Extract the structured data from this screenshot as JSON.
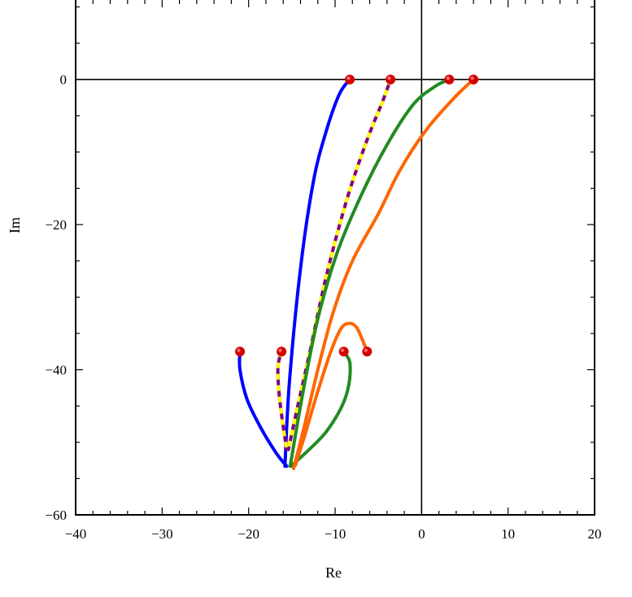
{
  "chart_data": {
    "type": "line",
    "title": "",
    "xlabel": "Re",
    "ylabel": "Im",
    "xlim": [
      -40,
      20
    ],
    "ylim": [
      -60,
      10
    ],
    "x_ticks": [
      -40,
      -30,
      -20,
      -10,
      0,
      10,
      20
    ],
    "y_ticks": [
      -60,
      -40,
      -20,
      0
    ],
    "x_tick_labels": [
      "−40",
      "−30",
      "−20",
      "−10",
      "0",
      "10",
      "20"
    ],
    "y_tick_labels": [
      "−60",
      "−40",
      "−20",
      "0"
    ],
    "grid": false,
    "reference_lines": {
      "x": 0,
      "y": 0
    },
    "series": [
      {
        "color": "#0000ff",
        "style": "solid",
        "points": [
          [
            -8.3,
            0
          ],
          [
            -9.5,
            -2
          ],
          [
            -11,
            -7
          ],
          [
            -12.5,
            -14
          ],
          [
            -14,
            -26
          ],
          [
            -15.3,
            -42
          ],
          [
            -15.8,
            -53.3
          ]
        ]
      },
      {
        "color": "#0000ff",
        "style": "solid",
        "points": [
          [
            -21,
            -37.5
          ],
          [
            -21,
            -40
          ],
          [
            -20.2,
            -44
          ],
          [
            -18.6,
            -48
          ],
          [
            -16.8,
            -51.5
          ],
          [
            -15.6,
            -53.3
          ]
        ]
      },
      {
        "color": "#800080",
        "dash_color": "#ffff00",
        "style": "dashed",
        "points": [
          [
            -3.6,
            0
          ],
          [
            -4.5,
            -3
          ],
          [
            -6.2,
            -8
          ],
          [
            -8.5,
            -16
          ],
          [
            -11,
            -27
          ],
          [
            -13,
            -38
          ],
          [
            -14.5,
            -46
          ],
          [
            -15.4,
            -51
          ]
        ]
      },
      {
        "color": "#800080",
        "dash_color": "#ffff00",
        "style": "dashed",
        "points": [
          [
            -16.2,
            -37.5
          ],
          [
            -16.6,
            -39.5
          ],
          [
            -16.5,
            -43
          ],
          [
            -16.1,
            -47
          ],
          [
            -15.6,
            -51
          ]
        ]
      },
      {
        "color": "#228b22",
        "style": "solid",
        "points": [
          [
            3.2,
            0
          ],
          [
            1.5,
            -1
          ],
          [
            -1,
            -3.5
          ],
          [
            -4,
            -9
          ],
          [
            -7,
            -16
          ],
          [
            -9.8,
            -24
          ],
          [
            -12,
            -33
          ],
          [
            -13.7,
            -43
          ],
          [
            -15.2,
            -53.3
          ]
        ]
      },
      {
        "color": "#228b22",
        "style": "solid",
        "points": [
          [
            -9,
            -37.5
          ],
          [
            -8.3,
            -39
          ],
          [
            -8.4,
            -42
          ],
          [
            -9.2,
            -45
          ],
          [
            -11,
            -48.5
          ],
          [
            -13,
            -51
          ],
          [
            -15.1,
            -53.3
          ]
        ]
      },
      {
        "color": "#ff6600",
        "style": "solid",
        "points": [
          [
            6,
            0
          ],
          [
            3.8,
            -2.5
          ],
          [
            0.5,
            -7
          ],
          [
            -2.5,
            -12.5
          ],
          [
            -5,
            -18.5
          ],
          [
            -8,
            -25
          ],
          [
            -10.2,
            -32
          ],
          [
            -12,
            -40
          ],
          [
            -13.6,
            -48
          ],
          [
            -14.8,
            -53.6
          ]
        ]
      },
      {
        "color": "#ff6600",
        "style": "solid",
        "points": [
          [
            -6.3,
            -37.5
          ],
          [
            -6.8,
            -36
          ],
          [
            -7.5,
            -34.2
          ],
          [
            -8.3,
            -33.6
          ],
          [
            -9.3,
            -34.3
          ],
          [
            -10.5,
            -37.5
          ],
          [
            -12,
            -43
          ],
          [
            -13.5,
            -49
          ],
          [
            -14.6,
            -53.2
          ]
        ]
      }
    ],
    "markers": {
      "color": "#d40000",
      "points": [
        [
          -8.3,
          0
        ],
        [
          -3.6,
          0
        ],
        [
          3.2,
          0
        ],
        [
          6,
          0
        ],
        [
          -21,
          -37.5
        ],
        [
          -16.2,
          -37.5
        ],
        [
          -9,
          -37.5
        ],
        [
          -6.3,
          -37.5
        ]
      ]
    }
  }
}
